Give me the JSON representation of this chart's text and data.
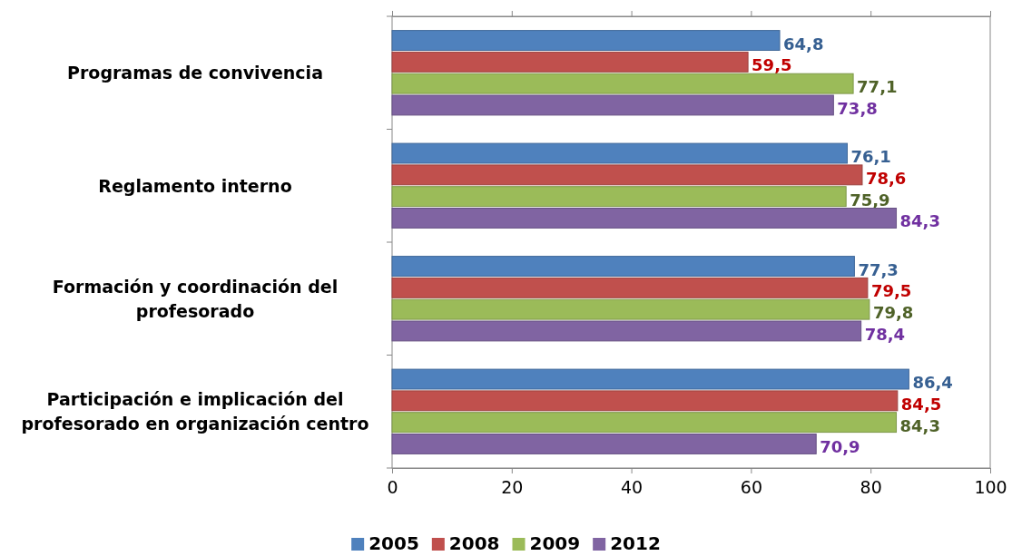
{
  "chart_data": {
    "type": "bar",
    "orientation": "horizontal",
    "categories": [
      "Programas de convivencia",
      "Reglamento interno",
      "Formación y coordinación del profesorado",
      "Participación e implicación del profesorado en organización centro"
    ],
    "series": [
      {
        "name": "2005",
        "color": "#4f81bd",
        "values": [
          64.8,
          76.1,
          77.3,
          86.4
        ],
        "value_labels": [
          "64,8",
          "76,1",
          "77,3",
          "86,4"
        ]
      },
      {
        "name": "2008",
        "color": "#c0504d",
        "values": [
          59.5,
          78.6,
          79.5,
          84.5
        ],
        "value_labels": [
          "59,5",
          "78,6",
          "79,5",
          "84,5"
        ]
      },
      {
        "name": "2009",
        "color": "#9bbb59",
        "values": [
          77.1,
          75.9,
          79.8,
          84.3
        ],
        "value_labels": [
          "77,1",
          "75,9",
          "79,8",
          "84,3"
        ]
      },
      {
        "name": "2012",
        "color": "#8064a2",
        "values": [
          73.8,
          84.3,
          78.4,
          70.9
        ],
        "value_labels": [
          "73,8",
          "84,3",
          "78,4",
          "70,9"
        ]
      }
    ],
    "xlim": [
      0,
      100
    ],
    "xticks": [
      0,
      20,
      40,
      60,
      80,
      100
    ],
    "grid": false,
    "legend": "bottom"
  }
}
